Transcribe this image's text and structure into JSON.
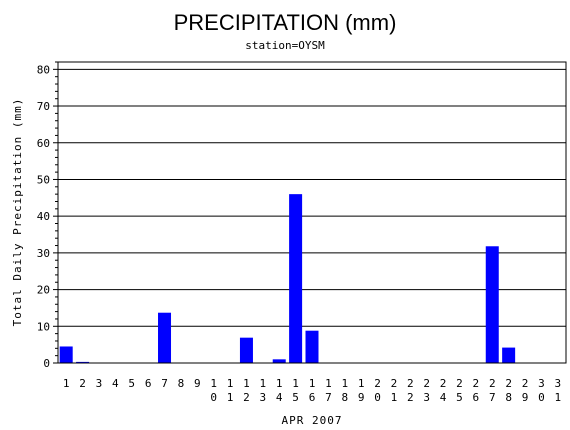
{
  "chart_data": {
    "type": "bar",
    "title": "PRECIPITATION (mm)",
    "subtitle": "station=OYSM",
    "xlabel": "APR 2007",
    "ylabel": "Total Daily Precipitation (mm)",
    "ylim": [
      0,
      82
    ],
    "yticks": [
      "0",
      "10",
      "20",
      "30",
      "40",
      "50",
      "60",
      "70",
      "80"
    ],
    "categories": [
      "1",
      "2",
      "3",
      "4",
      "5",
      "6",
      "7",
      "8",
      "9",
      "10",
      "11",
      "12",
      "13",
      "14",
      "15",
      "16",
      "17",
      "18",
      "19",
      "20",
      "21",
      "22",
      "23",
      "24",
      "25",
      "26",
      "27",
      "28",
      "29",
      "30",
      "31"
    ],
    "values": [
      4.5,
      0.3,
      0,
      0,
      0,
      0,
      13.7,
      0,
      0,
      0,
      0,
      6.9,
      0,
      1.0,
      46.0,
      8.8,
      0,
      0,
      0,
      0,
      0,
      0,
      0,
      0,
      0,
      0,
      31.8,
      4.2,
      0,
      0,
      0
    ],
    "grid": true,
    "colors": {
      "bar": "#0000ff",
      "grid": "#000000",
      "axis": "#000000"
    }
  }
}
